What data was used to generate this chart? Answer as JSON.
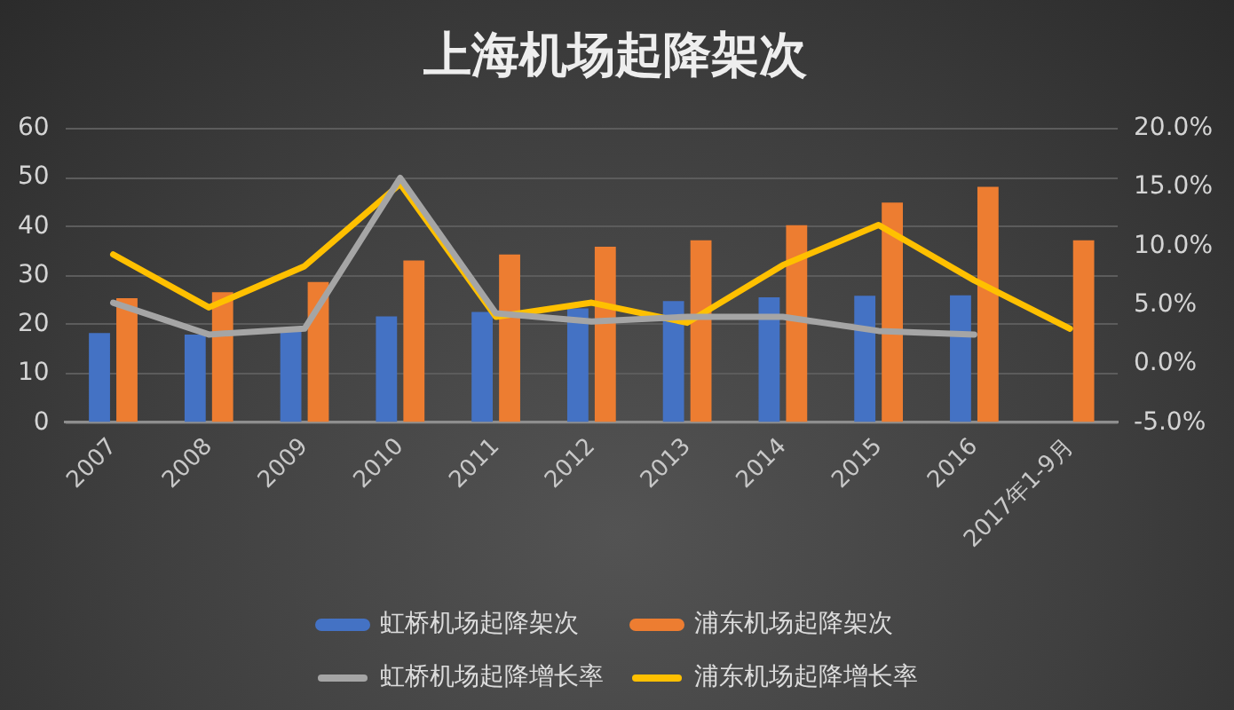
{
  "chart_data": {
    "type": "bar",
    "title": "上海机场起降架次",
    "categories": [
      "2007",
      "2008",
      "2009",
      "2010",
      "2011",
      "2012",
      "2013",
      "2014",
      "2015",
      "2016",
      "2017年1-9月"
    ],
    "series": [
      {
        "name": "虹桥机场起降架次",
        "color": "#4472c4",
        "values": [
          18.3,
          18.0,
          18.5,
          21.7,
          22.6,
          23.3,
          24.8,
          25.6,
          25.9,
          26.0,
          null
        ]
      },
      {
        "name": "浦东机场起降架次",
        "color": "#ed7d31",
        "values": [
          25.4,
          26.6,
          28.7,
          33.1,
          34.3,
          35.9,
          37.2,
          40.3,
          44.9,
          48.1,
          37.2
        ]
      },
      {
        "name": "虹桥机场起降增长率",
        "type": "line",
        "axis": "y2",
        "color": "#a5a5a5",
        "values": [
          5.2,
          2.5,
          3.0,
          15.8,
          4.3,
          3.6,
          4.0,
          4.0,
          2.8,
          2.5,
          null
        ]
      },
      {
        "name": "浦东机场起降增长率",
        "type": "line",
        "axis": "y2",
        "color": "#ffc000",
        "values": [
          9.3,
          4.8,
          8.3,
          15.3,
          4.0,
          5.2,
          3.5,
          8.4,
          11.8,
          7.1,
          3.0
        ]
      }
    ],
    "ylim": [
      0,
      60
    ],
    "yticks": [
      0,
      10,
      20,
      30,
      40,
      50,
      60
    ],
    "y2lim": [
      -5,
      20
    ],
    "y2ticks": [
      {
        "value": -5,
        "label": "-5.0%"
      },
      {
        "value": 0,
        "label": "0.0%"
      },
      {
        "value": 5,
        "label": "5.0%"
      },
      {
        "value": 10,
        "label": "10.0%"
      },
      {
        "value": 15,
        "label": "15.0%"
      },
      {
        "value": 20,
        "label": "20.0%"
      }
    ],
    "grid": "y",
    "legend": "bottom",
    "marker": "none"
  }
}
